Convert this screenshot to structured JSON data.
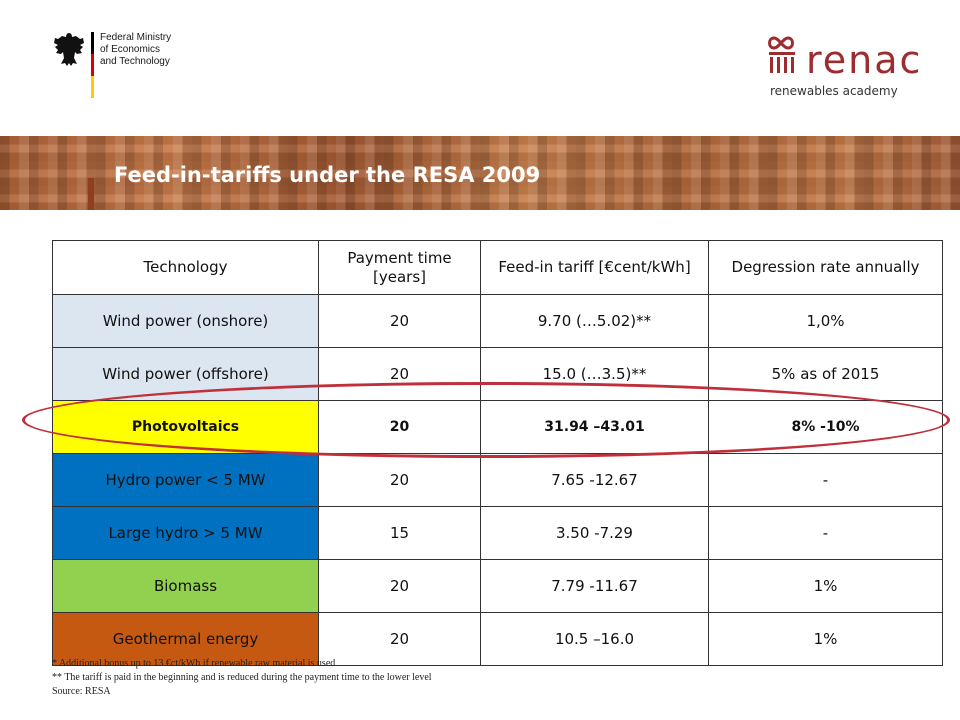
{
  "header": {
    "ministry_lines": [
      "Federal Ministry",
      "of Economics",
      "and Technology"
    ],
    "academy_name": "renac",
    "academy_tagline": "renewables academy",
    "flag_colors": [
      "#000000",
      "#dd0000",
      "#ffce00"
    ],
    "brand_color": "#9b2c2f"
  },
  "slide": {
    "title": "Feed-in-tariffs under the RESA 2009"
  },
  "table": {
    "columns": [
      "Technology",
      "Payment time [years]",
      "Feed-in tariff [€cent/kWh]",
      "Degression rate annually"
    ],
    "rows": [
      {
        "technology": "Wind power (onshore)",
        "payment_time": "20",
        "tariff": "9.70 (…5.02)**",
        "degression": "1,0%",
        "color": "#dce6f1"
      },
      {
        "technology": "Wind power (offshore)",
        "payment_time": "20",
        "tariff": "15.0 (…3.5)**",
        "degression": "5% as of 2015",
        "color": "#dce6f1"
      },
      {
        "technology": "Photovoltaics",
        "payment_time": "20",
        "tariff": "31.94 –43.01",
        "degression": "8% -10%",
        "color": "#ffff00"
      },
      {
        "technology": "Hydro power < 5 MW",
        "payment_time": "20",
        "tariff": "7.65 -12.67",
        "degression": "-",
        "color": "#0070c0"
      },
      {
        "technology": "Large hydro > 5 MW",
        "payment_time": "15",
        "tariff": "3.50 -7.29",
        "degression": "-",
        "color": "#0070c0"
      },
      {
        "technology": "Biomass",
        "payment_time": "20",
        "tariff": "7.79 -11.67",
        "degression": "1%",
        "color": "#92d050"
      },
      {
        "technology": "Geothermal energy",
        "payment_time": "20",
        "tariff": "10.5 –16.0",
        "degression": "1%",
        "color": "#c65911"
      }
    ],
    "highlight_color": "#c0303a"
  },
  "footnotes": [
    "* Additional bonus up to 13 €ct/kWh if renewable raw material is used",
    "** The tariff is paid in the beginning and is reduced during the payment time to the lower level",
    "Source: RESA"
  ]
}
